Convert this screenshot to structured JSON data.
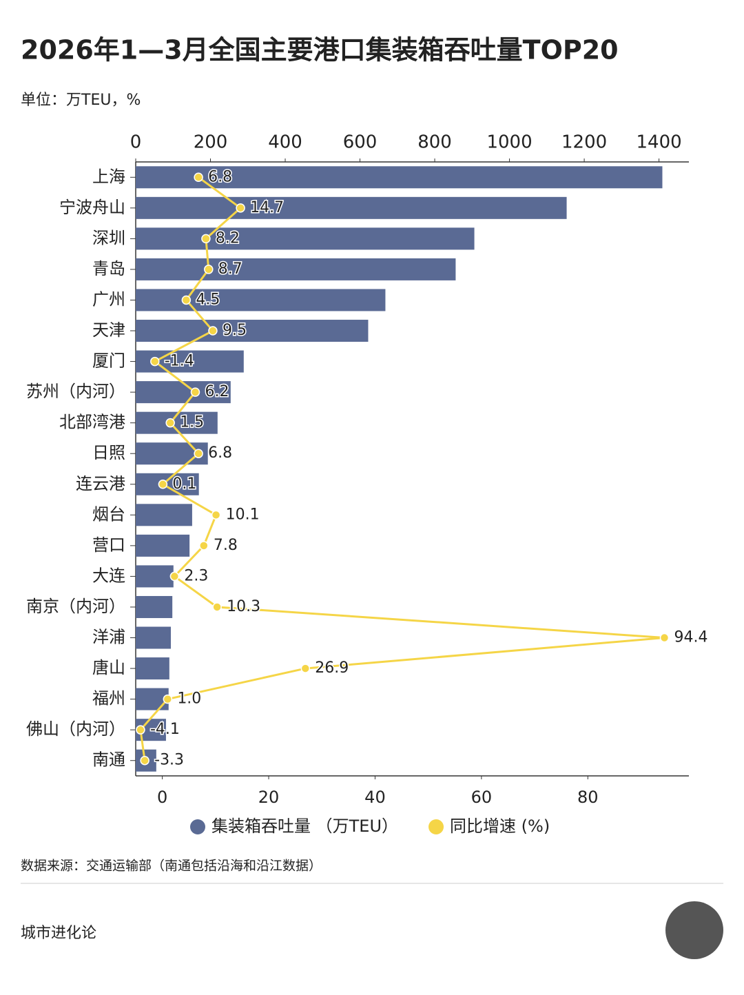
{
  "chart_data": {
    "type": "bar",
    "orientation": "horizontal",
    "title": "2026年1—3月全国主要港口集装箱吞吐量TOP20",
    "subtitle": "单位：万TEU，%",
    "categories": [
      "上海",
      "宁波舟山",
      "深圳",
      "青岛",
      "广州",
      "天津",
      "厦门",
      "苏州（内河）",
      "北部湾港",
      "日照",
      "连云港",
      "烟台",
      "营口",
      "大连",
      "南京（内河）",
      "洋浦",
      "唐山",
      "福州",
      "佛山（内河）",
      "南通"
    ],
    "series": [
      {
        "name": "集装箱吞吐量 （万TEU）",
        "color": "#5a6a94",
        "type": "bar",
        "values": [
          1409,
          1153,
          906,
          856,
          668,
          622,
          289,
          254,
          219,
          193,
          169,
          151,
          144,
          101,
          98,
          94,
          90,
          88,
          81,
          55
        ]
      },
      {
        "name": "同比增速 (%)",
        "color": "#f5d547",
        "type": "line",
        "axis": "x2",
        "values": [
          6.8,
          14.7,
          8.2,
          8.7,
          4.5,
          9.5,
          -1.4,
          6.2,
          1.5,
          6.8,
          0.1,
          10.1,
          7.8,
          2.3,
          10.3,
          94.4,
          26.9,
          1.0,
          -4.1,
          -3.3
        ],
        "value_labels": [
          "6.8",
          "14.7",
          "8.2",
          "8.7",
          "4.5",
          "9.5",
          "-1.4",
          "6.2",
          "1.5",
          "6.8",
          "0.1",
          "10.1",
          "7.8",
          "2.3",
          "10.3",
          "94.4",
          "26.9",
          "1.0",
          "-4.1",
          "-3.3"
        ]
      }
    ],
    "xlim": [
      0,
      1480
    ],
    "xticks": [
      0,
      200,
      400,
      600,
      800,
      1000,
      1200,
      1400
    ],
    "x2lim": [
      -5,
      99
    ],
    "x2ticks": [
      0,
      20,
      40,
      60,
      80
    ],
    "source": "数据来源：交通运输部（南通包括沿海和沿江数据）"
  },
  "footer": {
    "brand": "城市进化论"
  }
}
